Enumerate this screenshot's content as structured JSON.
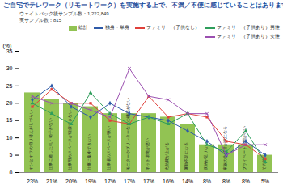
{
  "chart_data": {
    "type": "bar",
    "title": "ご自宅でテレワーク（リモートワーク）を実施する上で、不満／不便に感じていることはありますか",
    "annotations": [
      "ウェイトバック後サンプル数：1,222,849",
      "実サンプル数：815"
    ],
    "y_label": "(%)",
    "categories": [
      "オンとオフの切り替えがしづらい",
      "仕事に適した机・椅子がない",
      "仕事用のスペースが確保できない",
      "仕事に集中できない",
      "仕事場のスペースが狭い",
      "モニターやプリンターなどの機器がない",
      "ネット環境が悪い",
      "光熱費が上がる",
      "運動不足になる",
      "収納が足りない",
      "家族の生活音が気になる",
      "プライベート空間がない",
      "その他"
    ],
    "series": [
      {
        "name": "総計",
        "type": "bar",
        "color": "#92c353",
        "values": [
          23,
          21,
          20,
          19,
          17,
          17,
          17,
          16,
          14,
          8,
          8,
          8,
          5
        ],
        "value_labels": [
          "23%",
          "21%",
          "20%",
          "19%",
          "17%",
          "17%",
          "17%",
          "16%",
          "14%",
          "8%",
          "8%",
          "8%",
          "5%"
        ]
      },
      {
        "name": "独身・単身",
        "type": "line",
        "color": "#2e5aa8",
        "marker": "diamond",
        "values": [
          21,
          25,
          19,
          16,
          20,
          17,
          16,
          15,
          12,
          9,
          5,
          9,
          5
        ]
      },
      {
        "name": "ファミリー（子供なし）",
        "type": "line",
        "color": "#e0403a",
        "marker": "square",
        "values": [
          19,
          24,
          20,
          20,
          15,
          14,
          22,
          16,
          17,
          16,
          9,
          8,
          4
        ]
      },
      {
        "name": "ファミリー（子供あり）男性",
        "type": "line",
        "color": "#2e9e5b",
        "marker": "triangle",
        "values": [
          20,
          17,
          14,
          23,
          17,
          14,
          16,
          14,
          17,
          8,
          6,
          12,
          3
        ]
      },
      {
        "name": "ファミリー（子供あり）女性",
        "type": "line",
        "color": "#9b4fb0",
        "marker": "times",
        "values": [
          22,
          20,
          20,
          18,
          16,
          30,
          22,
          21,
          17,
          17,
          5,
          8,
          8
        ]
      }
    ],
    "ylim": [
      0,
      35
    ],
    "yticks": [
      0,
      5,
      10,
      15,
      20,
      25,
      30,
      35
    ],
    "grid": false,
    "legend": "top-right",
    "data_labels": true
  }
}
